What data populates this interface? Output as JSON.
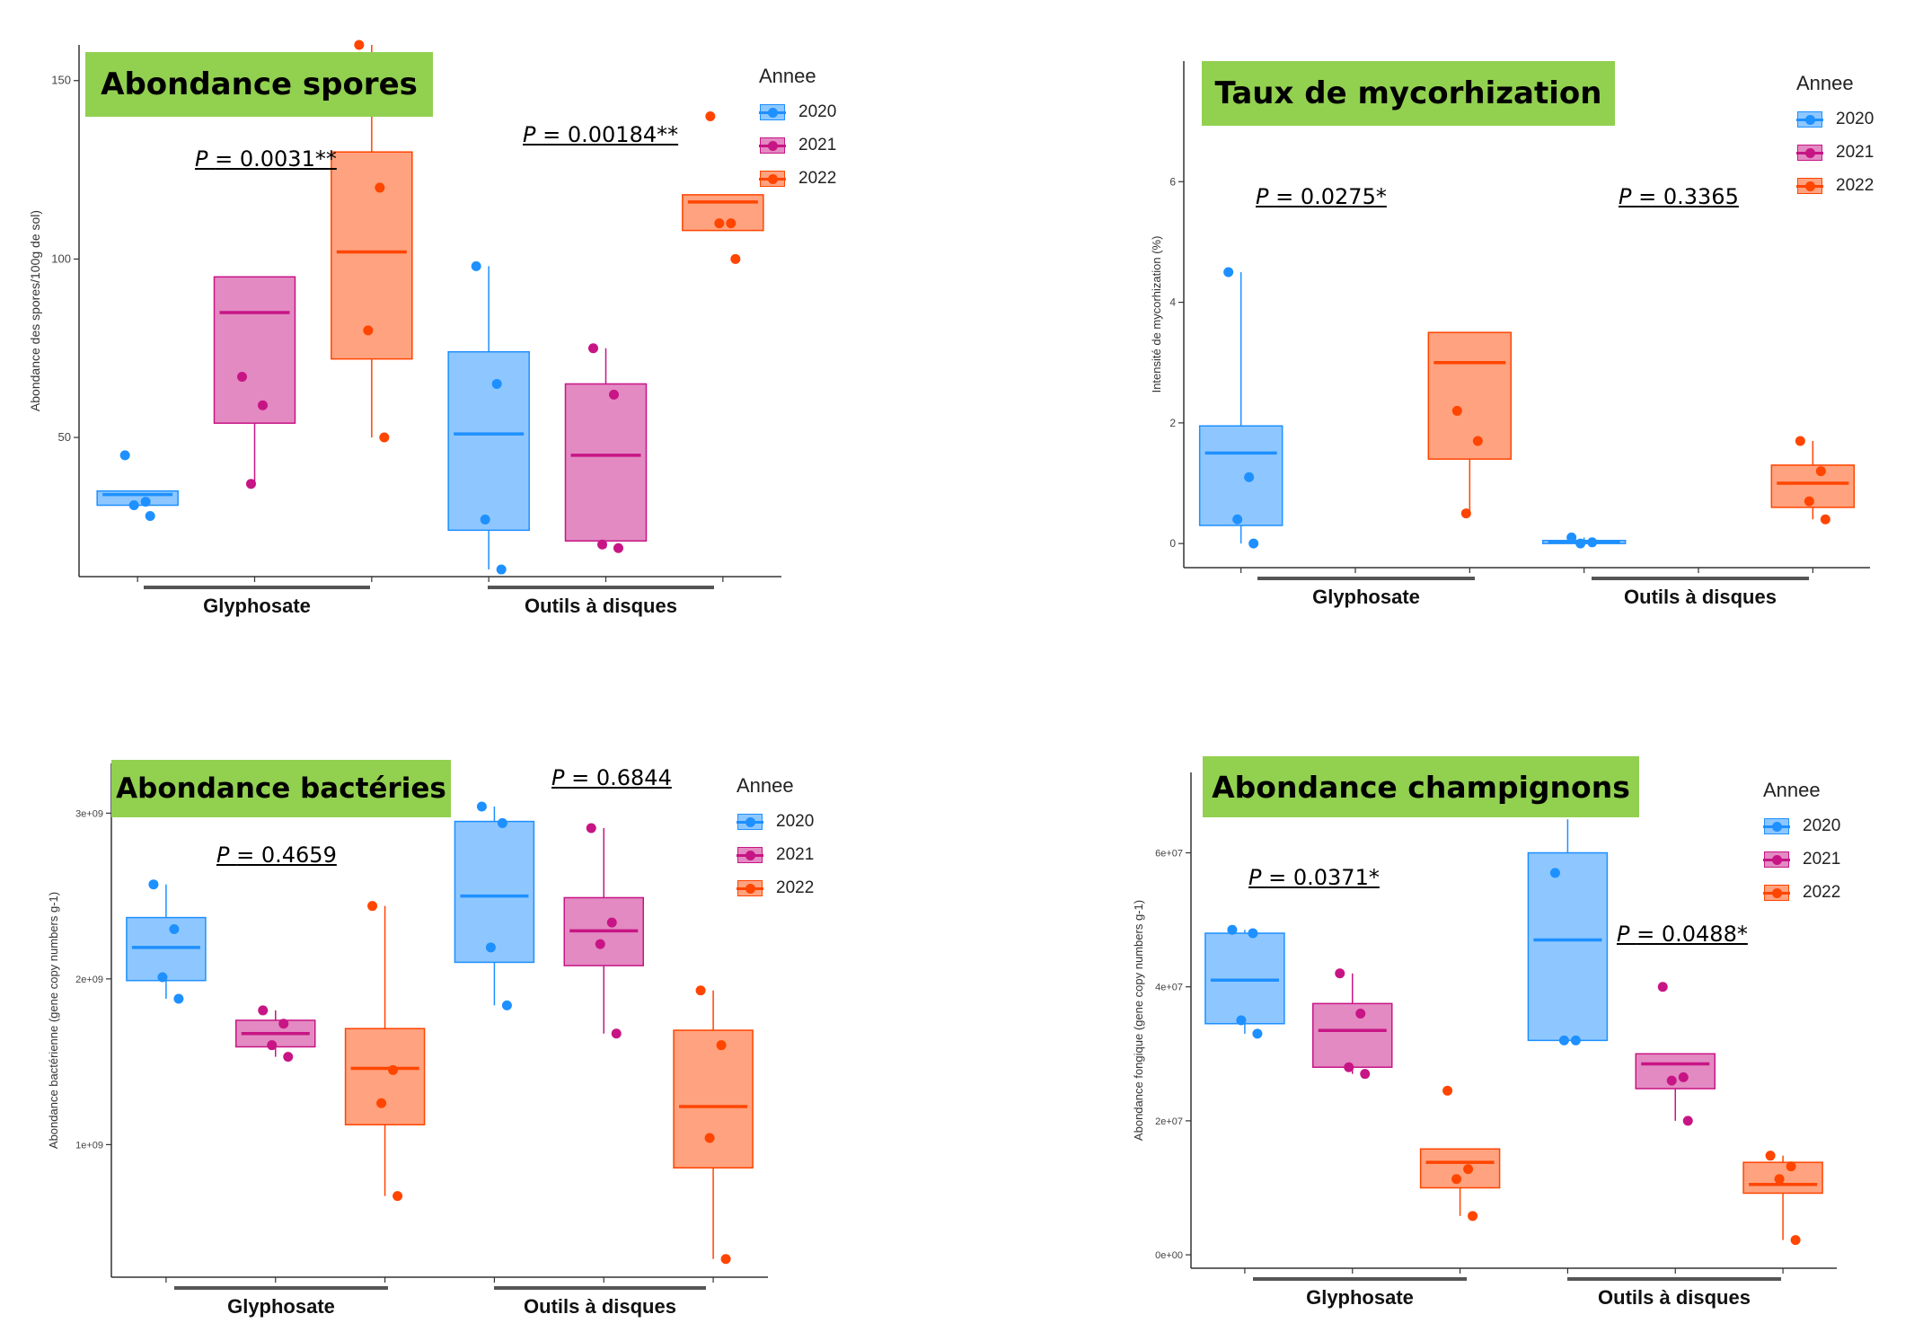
{
  "colors": {
    "2020": "#1e90ff",
    "2021": "#c71585",
    "2022": "#ff4500",
    "title_bg": "#92d050"
  },
  "legend": {
    "title": "Annee",
    "entries": [
      "2020",
      "2021",
      "2022"
    ]
  },
  "chart_data": [
    {
      "type": "box",
      "title": "Abondance spores",
      "ylabel": "Abondance des spores/100g de sol)",
      "ylim": [
        11,
        160
      ],
      "yticks": [
        50,
        100,
        150
      ],
      "ytick_labels": [
        "50",
        "100",
        "150"
      ],
      "groups": [
        "Glyphosate",
        "Outils à disques"
      ],
      "p_values": [
        {
          "prefix": "P",
          "text": "= 0.0031**"
        },
        {
          "prefix": "P",
          "text": "= 0.00184**"
        }
      ],
      "series": [
        {
          "name": "2020",
          "boxes": [
            {
              "q1": 31,
              "median": 34,
              "q3": 35,
              "min": 31,
              "max": 35,
              "points": [
                45,
                32,
                31,
                28
              ]
            },
            {
              "q1": 24,
              "median": 51,
              "q3": 74,
              "min": 13,
              "max": 98,
              "points": [
                98,
                65,
                27,
                13
              ]
            }
          ]
        },
        {
          "name": "2021",
          "boxes": [
            {
              "q1": 54,
              "median": 85,
              "q3": 95,
              "min": 37,
              "max": 95,
              "points": [
                67,
                59,
                37
              ]
            },
            {
              "q1": 21,
              "median": 45,
              "q3": 65,
              "min": 19,
              "max": 75,
              "points": [
                75,
                62,
                20,
                19
              ]
            }
          ]
        },
        {
          "name": "2022",
          "boxes": [
            {
              "q1": 72,
              "median": 102,
              "q3": 130,
              "min": 50,
              "max": 160,
              "points": [
                160,
                120,
                80,
                50
              ]
            },
            {
              "q1": 108,
              "median": 116,
              "q3": 118,
              "min": 108,
              "max": 118,
              "points": [
                140,
                110,
                110,
                100
              ]
            }
          ]
        }
      ]
    },
    {
      "type": "box",
      "title": "Taux de mycorhization",
      "ylabel": "Intensité de mycorhization (%)",
      "ylim": [
        -0.4,
        8
      ],
      "yticks": [
        0,
        2,
        4,
        6
      ],
      "ytick_labels": [
        "0",
        "2",
        "4",
        "6"
      ],
      "groups": [
        "Glyphosate",
        "Outils à disques"
      ],
      "p_values": [
        {
          "prefix": "P",
          "text": "= 0.0275*"
        },
        {
          "prefix": "P",
          "text": "= 0.3365"
        }
      ],
      "series": [
        {
          "name": "2020",
          "boxes": [
            {
              "q1": 0.3,
              "median": 1.5,
              "q3": 1.95,
              "min": 0.0,
              "max": 4.5,
              "points": [
                4.5,
                1.1,
                0.4,
                0.0
              ]
            },
            {
              "q1": 0.0,
              "median": 0.03,
              "q3": 0.05,
              "min": 0.0,
              "max": 0.1,
              "points": [
                0.1,
                0.02,
                0.0
              ]
            }
          ]
        },
        {
          "name": "2022",
          "boxes": [
            {
              "q1": 1.4,
              "median": 3.0,
              "q3": 3.5,
              "min": 0.5,
              "max": 3.5,
              "points": [
                2.2,
                1.7,
                0.5
              ]
            },
            {
              "q1": 0.6,
              "median": 1.0,
              "q3": 1.3,
              "min": 0.4,
              "max": 1.7,
              "points": [
                1.7,
                1.2,
                0.7,
                0.4
              ]
            }
          ]
        }
      ]
    },
    {
      "type": "box",
      "title": "Abondance bactéries",
      "ylabel": "Abondance bactérienne (gene copy numbers g-1)",
      "ylim": [
        200000000,
        3300000000
      ],
      "yticks": [
        1000000000,
        2000000000,
        3000000000
      ],
      "ytick_labels": [
        "1e+09",
        "2e+09",
        "3e+09"
      ],
      "groups": [
        "Glyphosate",
        "Outils à disques"
      ],
      "p_values": [
        {
          "prefix": "P",
          "text": "= 0.4659"
        },
        {
          "prefix": "P",
          "text": "= 0.6844"
        }
      ],
      "series": [
        {
          "name": "2020",
          "boxes": [
            {
              "q1": 1990000000,
              "median": 2190000000,
              "q3": 2370000000,
              "min": 1880000000,
              "max": 2570000000,
              "points": [
                2570000000,
                2300000000,
                2010000000,
                1880000000
              ]
            },
            {
              "q1": 2100000000,
              "median": 2500000000,
              "q3": 2950000000,
              "min": 1840000000,
              "max": 3040000000,
              "points": [
                3040000000,
                2940000000,
                2190000000,
                1840000000
              ]
            }
          ]
        },
        {
          "name": "2021",
          "boxes": [
            {
              "q1": 1590000000,
              "median": 1670000000,
              "q3": 1750000000,
              "min": 1530000000,
              "max": 1810000000,
              "points": [
                1810000000,
                1730000000,
                1600000000,
                1530000000
              ]
            },
            {
              "q1": 2080000000,
              "median": 2290000000,
              "q3": 2490000000,
              "min": 1670000000,
              "max": 2910000000,
              "points": [
                2910000000,
                2340000000,
                2210000000,
                1670000000
              ]
            }
          ]
        },
        {
          "name": "2022",
          "boxes": [
            {
              "q1": 1120000000,
              "median": 1460000000,
              "q3": 1700000000,
              "min": 690000000,
              "max": 2440000000,
              "points": [
                2440000000,
                1450000000,
                1250000000,
                690000000
              ]
            },
            {
              "q1": 860000000,
              "median": 1230000000,
              "q3": 1690000000,
              "min": 310000000,
              "max": 1930000000,
              "points": [
                1930000000,
                1600000000,
                1040000000,
                310000000
              ]
            }
          ]
        }
      ]
    },
    {
      "type": "box",
      "title": "Abondance champignons",
      "ylabel": "Abondance fongique (gene copy numbers g-1)",
      "ylim": [
        -2000000,
        72000000
      ],
      "yticks": [
        0,
        20000000,
        40000000,
        60000000
      ],
      "ytick_labels": [
        "0e+00",
        "2e+07",
        "4e+07",
        "6e+07"
      ],
      "groups": [
        "Glyphosate",
        "Outils à disques"
      ],
      "p_values": [
        {
          "prefix": "P",
          "text": "= 0.0371*"
        },
        {
          "prefix": "P",
          "text": "= 0.0488*"
        }
      ],
      "series": [
        {
          "name": "2020",
          "boxes": [
            {
              "q1": 34500000,
              "median": 41000000,
              "q3": 48000000,
              "min": 33000000,
              "max": 48500000,
              "points": [
                48500000,
                48000000,
                35000000,
                33000000
              ]
            },
            {
              "q1": 32000000,
              "median": 47000000,
              "q3": 60000000,
              "min": 32000000,
              "max": 65000000,
              "points": [
                57000000,
                32000000,
                32000000
              ]
            }
          ]
        },
        {
          "name": "2021",
          "boxes": [
            {
              "q1": 28000000,
              "median": 33500000,
              "q3": 37500000,
              "min": 27000000,
              "max": 42000000,
              "points": [
                42000000,
                36000000,
                28000000,
                27000000
              ]
            },
            {
              "q1": 24800000,
              "median": 28500000,
              "q3": 30000000,
              "min": 20000000,
              "max": 30000000,
              "points": [
                40000000,
                26500000,
                26000000,
                20000000
              ]
            }
          ]
        },
        {
          "name": "2022",
          "boxes": [
            {
              "q1": 10000000,
              "median": 13800000,
              "q3": 15800000,
              "min": 5800000,
              "max": 15800000,
              "points": [
                24500000,
                12800000,
                11300000,
                5800000
              ]
            },
            {
              "q1": 9200000,
              "median": 10500000,
              "q3": 13800000,
              "min": 2200000,
              "max": 14800000,
              "points": [
                14800000,
                13200000,
                11300000,
                2200000
              ]
            }
          ]
        }
      ]
    }
  ]
}
